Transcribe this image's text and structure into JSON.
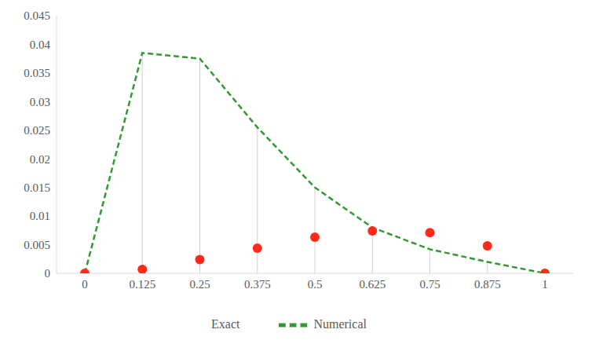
{
  "chart_data": {
    "type": "line",
    "categories": [
      "0",
      "0.125",
      "0.25",
      "0.375",
      "0.5",
      "0.625",
      "0.75",
      "0.875",
      "1"
    ],
    "series": [
      {
        "name": "Numerical",
        "type": "line",
        "color": "#339933",
        "line_style": "dashed",
        "values": [
          0,
          0.0385,
          0.0375,
          0.0255,
          0.015,
          0.008,
          0.0042,
          0.002,
          0
        ]
      },
      {
        "name": "Exact",
        "type": "scatter",
        "color": "#ff2a1a",
        "marker": "circle",
        "values": [
          0,
          0.0007,
          0.0024,
          0.0044,
          0.0063,
          0.0074,
          0.0071,
          0.0048,
          0
        ]
      }
    ],
    "ylim": [
      0,
      0.045
    ],
    "yticks": [
      0,
      0.005,
      0.01,
      0.015,
      0.02,
      0.025,
      0.03,
      0.035,
      0.04,
      0.045
    ],
    "grid": false,
    "legend": "bottom"
  }
}
